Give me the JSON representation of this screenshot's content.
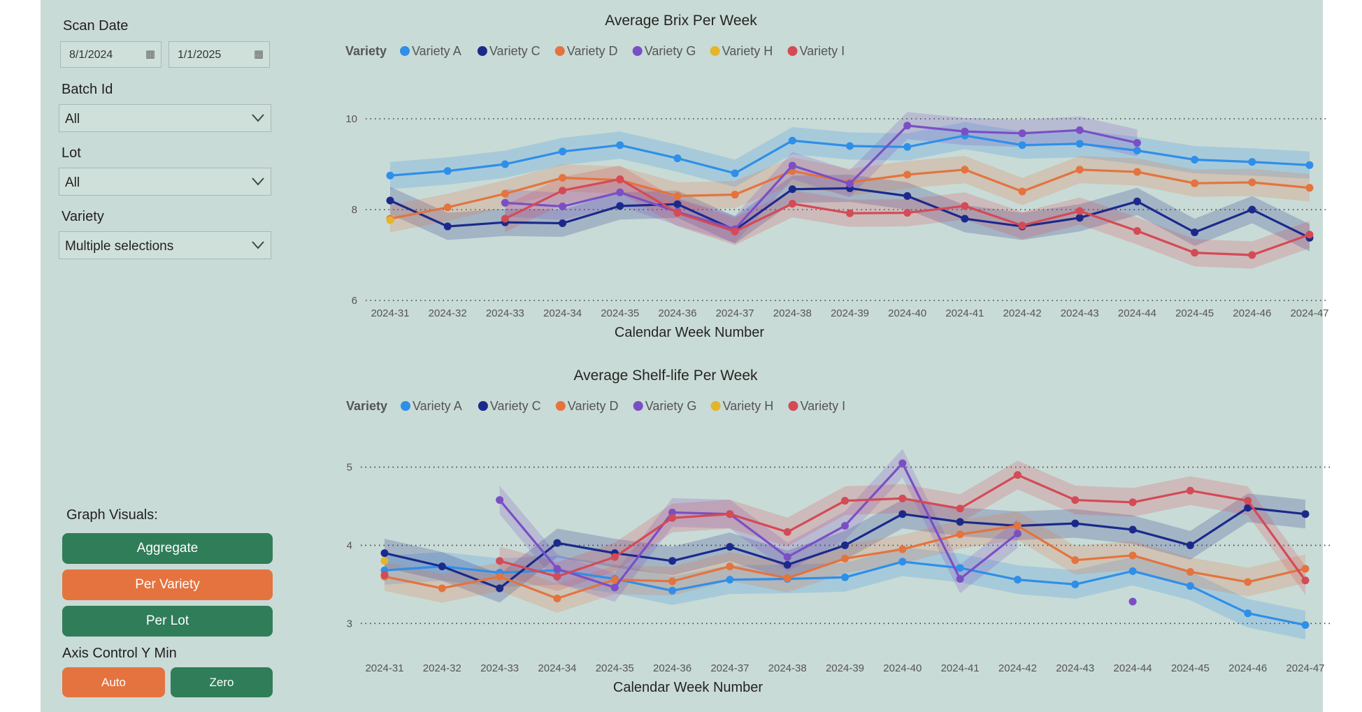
{
  "filters": {
    "scan_date": {
      "label": "Scan Date",
      "start": "8/1/2024",
      "end": "1/1/2025"
    },
    "batch_id": {
      "label": "Batch Id",
      "value": "All"
    },
    "lot": {
      "label": "Lot",
      "value": "All"
    },
    "variety": {
      "label": "Variety",
      "value": "Multiple selections"
    }
  },
  "graph_visuals": {
    "label": "Graph Visuals:",
    "aggregate": "Aggregate",
    "per_variety": "Per Variety",
    "per_lot": "Per Lot"
  },
  "axis_control": {
    "label": "Axis Control Y Min",
    "auto": "Auto",
    "zero": "Zero"
  },
  "colors": {
    "Variety A": "#2f8fe8",
    "Variety C": "#1b2a8a",
    "Variety D": "#e4733f",
    "Variety G": "#7b4fc4",
    "Variety H": "#e3b52a",
    "Variety I": "#d44a56",
    "canvas": "#c9dbd6"
  },
  "chart_data": [
    {
      "type": "line",
      "title": "Average Brix Per Week",
      "xlabel": "Calendar Week Number",
      "ylabel": "",
      "legend_title": "Variety",
      "legend_position": "top-left",
      "ylim": [
        6,
        10
      ],
      "yticks": [
        6,
        8,
        10
      ],
      "categories": [
        "2024-31",
        "2024-32",
        "2024-33",
        "2024-34",
        "2024-35",
        "2024-36",
        "2024-37",
        "2024-38",
        "2024-39",
        "2024-40",
        "2024-41",
        "2024-42",
        "2024-43",
        "2024-44",
        "2024-45",
        "2024-46",
        "2024-47"
      ],
      "series": [
        {
          "name": "Variety A",
          "values": [
            8.75,
            8.85,
            9.0,
            9.28,
            9.42,
            9.13,
            8.8,
            9.52,
            9.4,
            9.38,
            9.63,
            9.42,
            9.45,
            9.3,
            9.1,
            9.05,
            8.98
          ]
        },
        {
          "name": "Variety C",
          "values": [
            8.2,
            7.63,
            7.72,
            7.7,
            8.08,
            8.12,
            7.55,
            8.45,
            8.47,
            8.3,
            7.8,
            7.63,
            7.82,
            8.18,
            7.5,
            8.0,
            7.38
          ]
        },
        {
          "name": "Variety D",
          "values": [
            7.8,
            8.05,
            8.35,
            8.7,
            8.65,
            8.3,
            8.33,
            8.85,
            8.6,
            8.77,
            8.88,
            8.4,
            8.88,
            8.83,
            8.58,
            8.6,
            8.48
          ]
        },
        {
          "name": "Variety G",
          "values": [
            null,
            null,
            8.15,
            8.07,
            8.38,
            7.95,
            7.57,
            8.97,
            8.57,
            9.85,
            9.72,
            9.68,
            9.75,
            9.47,
            null,
            null,
            null
          ]
        },
        {
          "name": "Variety H",
          "values": [
            7.77,
            null,
            null,
            null,
            null,
            null,
            null,
            null,
            null,
            null,
            null,
            null,
            null,
            null,
            null,
            null,
            null
          ]
        },
        {
          "name": "Variety I",
          "values": [
            null,
            null,
            7.8,
            8.42,
            8.67,
            7.93,
            7.52,
            8.13,
            7.92,
            7.93,
            8.08,
            7.65,
            7.97,
            7.53,
            7.05,
            7.0,
            7.45
          ]
        }
      ]
    },
    {
      "type": "line",
      "title": "Average Shelf-life Per Week",
      "xlabel": "Calendar Week Number",
      "ylabel": "",
      "legend_title": "Variety",
      "legend_position": "top-left",
      "ylim": [
        2.6,
        5.05
      ],
      "yticks": [
        3,
        4,
        5
      ],
      "categories": [
        "2024-31",
        "2024-32",
        "2024-33",
        "2024-34",
        "2024-35",
        "2024-36",
        "2024-37",
        "2024-38",
        "2024-39",
        "2024-40",
        "2024-41",
        "2024-42",
        "2024-43",
        "2024-44",
        "2024-45",
        "2024-46",
        "2024-47"
      ],
      "series": [
        {
          "name": "Variety A",
          "values": [
            3.68,
            3.73,
            3.65,
            3.68,
            3.57,
            3.42,
            3.56,
            3.57,
            3.59,
            3.79,
            3.71,
            3.56,
            3.5,
            3.67,
            3.48,
            3.13,
            2.98
          ]
        },
        {
          "name": "Variety C",
          "values": [
            3.9,
            3.73,
            3.45,
            4.03,
            3.9,
            3.8,
            3.98,
            3.75,
            4.0,
            4.4,
            4.3,
            4.25,
            4.28,
            4.2,
            4.0,
            4.48,
            4.4
          ]
        },
        {
          "name": "Variety D",
          "values": [
            3.6,
            3.45,
            3.6,
            3.32,
            3.56,
            3.54,
            3.73,
            3.58,
            3.83,
            3.95,
            4.14,
            4.25,
            3.81,
            3.87,
            3.66,
            3.53,
            3.7
          ]
        },
        {
          "name": "Variety G",
          "values": [
            null,
            null,
            4.58,
            3.7,
            3.46,
            4.42,
            4.4,
            3.85,
            4.25,
            5.05,
            3.57,
            4.15,
            null,
            3.28,
            null,
            null,
            null
          ]
        },
        {
          "name": "Variety H",
          "values": [
            3.8,
            null,
            null,
            null,
            null,
            null,
            null,
            null,
            null,
            null,
            null,
            null,
            null,
            null,
            null,
            null,
            null
          ]
        },
        {
          "name": "Variety I",
          "values": [
            3.62,
            null,
            3.8,
            3.6,
            3.85,
            4.35,
            4.4,
            4.17,
            4.57,
            4.6,
            4.47,
            4.9,
            4.58,
            4.55,
            4.7,
            4.57,
            3.55
          ]
        }
      ]
    }
  ]
}
